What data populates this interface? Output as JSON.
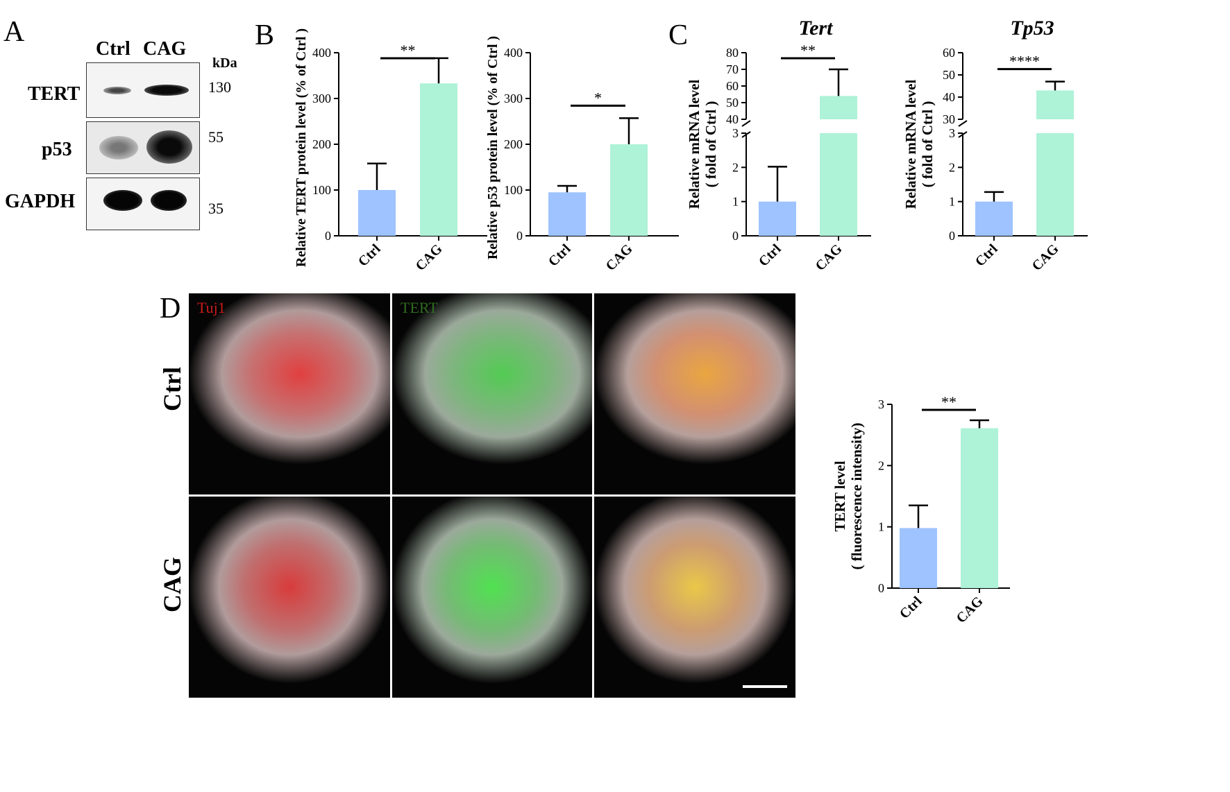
{
  "panels": {
    "a": "A",
    "b": "B",
    "c": "C",
    "d": "D"
  },
  "western_blot": {
    "columns": [
      "Ctrl",
      "CAG"
    ],
    "kda_label": "kDa",
    "rows": [
      {
        "name": "TERT",
        "mw": "130"
      },
      {
        "name": "p53",
        "mw": "55"
      },
      {
        "name": "GAPDH",
        "mw": "35"
      }
    ]
  },
  "microscopy": {
    "channels": [
      "Tuj1",
      "TERT"
    ],
    "channel_colors": [
      "#cc1a1a",
      "#2f6b1f"
    ],
    "rows": [
      "Ctrl",
      "CAG"
    ]
  },
  "colors": {
    "ctrl": "#9ec3ff",
    "cag": "#aef2d8"
  },
  "chart_data": [
    {
      "type": "bar",
      "categories": [
        "Ctrl",
        "CAG"
      ],
      "values": [
        100,
        333
      ],
      "errors": [
        58,
        55
      ],
      "ylim": [
        0,
        400
      ],
      "yticks": [
        0,
        100,
        200,
        300,
        400
      ],
      "ylabel": "Relative TERT protein level (% of Ctrl )",
      "significance": "**"
    },
    {
      "type": "bar",
      "categories": [
        "Ctrl",
        "CAG"
      ],
      "values": [
        95,
        200
      ],
      "errors": [
        14,
        57
      ],
      "ylim": [
        0,
        400
      ],
      "yticks": [
        0,
        100,
        200,
        300,
        400
      ],
      "ylabel": "Relative p53 protein level (% of Ctrl )",
      "significance": "*"
    },
    {
      "type": "bar",
      "title": "Tert",
      "categories": [
        "Ctrl",
        "CAG"
      ],
      "values": [
        1.0,
        54
      ],
      "errors": [
        1.02,
        16
      ],
      "y_axis_break": {
        "lower": [
          0,
          3
        ],
        "upper": [
          40,
          80
        ]
      },
      "yticks_lower": [
        0,
        1,
        2,
        3
      ],
      "yticks_upper": [
        40,
        50,
        60,
        70,
        80
      ],
      "ylabel": "Relative mRNA level",
      "ylabel2": "( fold of Ctrl )",
      "significance": "**"
    },
    {
      "type": "bar",
      "title": "Tp53",
      "categories": [
        "Ctrl",
        "CAG"
      ],
      "values": [
        1.0,
        43
      ],
      "errors": [
        0.28,
        4
      ],
      "y_axis_break": {
        "lower": [
          0,
          3
        ],
        "upper": [
          30,
          60
        ]
      },
      "yticks_lower": [
        0,
        1,
        2,
        3
      ],
      "yticks_upper": [
        30,
        40,
        50,
        60
      ],
      "ylabel": "Relative mRNA level",
      "ylabel2": "( fold of Ctrl )",
      "significance": "****"
    },
    {
      "type": "bar",
      "categories": [
        "Ctrl",
        "CAG"
      ],
      "values": [
        0.98,
        2.61
      ],
      "errors": [
        0.37,
        0.13
      ],
      "ylim": [
        0,
        3
      ],
      "yticks": [
        0,
        1,
        2,
        3
      ],
      "ylabel": "TERT level",
      "ylabel2": "( fluorescence intensity)",
      "significance": "**"
    }
  ]
}
